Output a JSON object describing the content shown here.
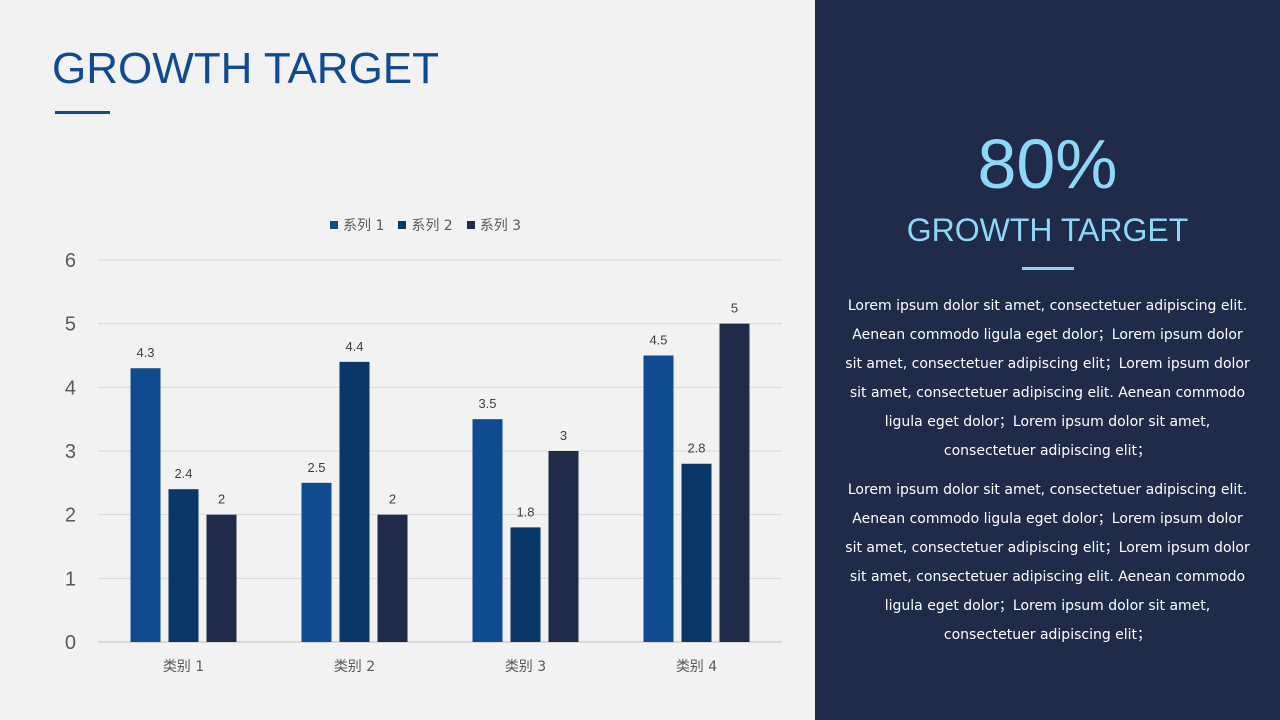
{
  "slide": {
    "title": "GROWTH TARGET",
    "highlight_value": "80%",
    "highlight_label": "GROWTH TARGET",
    "paragraphs": [
      "Lorem ipsum dolor sit amet, consectetuer adipiscing elit. Aenean commodo  ligula eget dolor；Lorem ipsum dolor sit amet, consectetuer adipiscing elit；Lorem ipsum dolor sit amet, consectetuer adipiscing elit. Aenean commodo ligula eget dolor；Lorem ipsum dolor sit amet, consectetuer adipiscing elit；",
      "Lorem ipsum dolor sit amet, consectetuer adipiscing elit. Aenean commodo  ligula eget dolor；Lorem ipsum dolor sit amet, consectetuer adipiscing elit；Lorem ipsum dolor sit amet, consectetuer adipiscing elit. Aenean commodo ligula eget dolor；Lorem ipsum dolor sit amet, consectetuer adipiscing elit；"
    ],
    "colors": {
      "accent": "#114b8f",
      "panel": "#1f2b48",
      "highlight": "#8fd7f7"
    }
  },
  "chart_data": {
    "type": "bar",
    "categories": [
      "类别 1",
      "类别 2",
      "类别 3",
      "类别 4"
    ],
    "series": [
      {
        "name": "系列 1",
        "values": [
          4.3,
          2.5,
          3.5,
          4.5
        ],
        "color": "#114b8f"
      },
      {
        "name": "系列 2",
        "values": [
          2.4,
          4.4,
          1.8,
          2.8
        ],
        "color": "#0b3768"
      },
      {
        "name": "系列 3",
        "values": [
          2,
          2,
          3,
          5
        ],
        "color": "#1f2b48"
      }
    ],
    "ylim": [
      0,
      6
    ],
    "yticks": [
      0,
      1,
      2,
      3,
      4,
      5,
      6
    ],
    "grid": true,
    "legend": "top",
    "data_labels": true
  }
}
